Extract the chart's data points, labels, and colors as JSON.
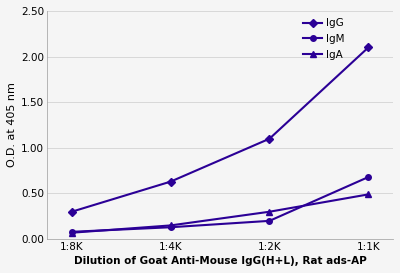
{
  "x_labels": [
    "1:8K",
    "1:4K",
    "1:2K",
    "1:1K"
  ],
  "x_values": [
    0,
    1,
    2,
    3
  ],
  "series": [
    {
      "label": "IgG",
      "values": [
        0.3,
        0.63,
        1.1,
        2.1
      ],
      "color": "#2b0096",
      "marker": "D",
      "markersize": 4,
      "linewidth": 1.5
    },
    {
      "label": "IgM",
      "values": [
        0.08,
        0.13,
        0.2,
        0.68
      ],
      "color": "#2b0096",
      "marker": "o",
      "markersize": 4,
      "linewidth": 1.5
    },
    {
      "label": "IgA",
      "values": [
        0.07,
        0.15,
        0.3,
        0.49
      ],
      "color": "#2b0096",
      "marker": "^",
      "markersize": 4,
      "linewidth": 1.5
    }
  ],
  "ylabel": "O.D. at 405 nm",
  "xlabel": "Dilution of Goat Anti-Mouse IgG(H+L), Rat ads-AP",
  "ylim": [
    0.0,
    2.5
  ],
  "yticks": [
    0.0,
    0.5,
    1.0,
    1.5,
    2.0,
    2.5
  ],
  "background_color": "#f5f5f5",
  "plot_bg_color": "#f5f5f5",
  "grid_color": "#d8d8d8",
  "ylabel_fontsize": 8,
  "xlabel_fontsize": 7.5,
  "tick_fontsize": 7.5,
  "legend_fontsize": 7.5,
  "fig_width": 4.0,
  "fig_height": 2.73,
  "dpi": 100
}
